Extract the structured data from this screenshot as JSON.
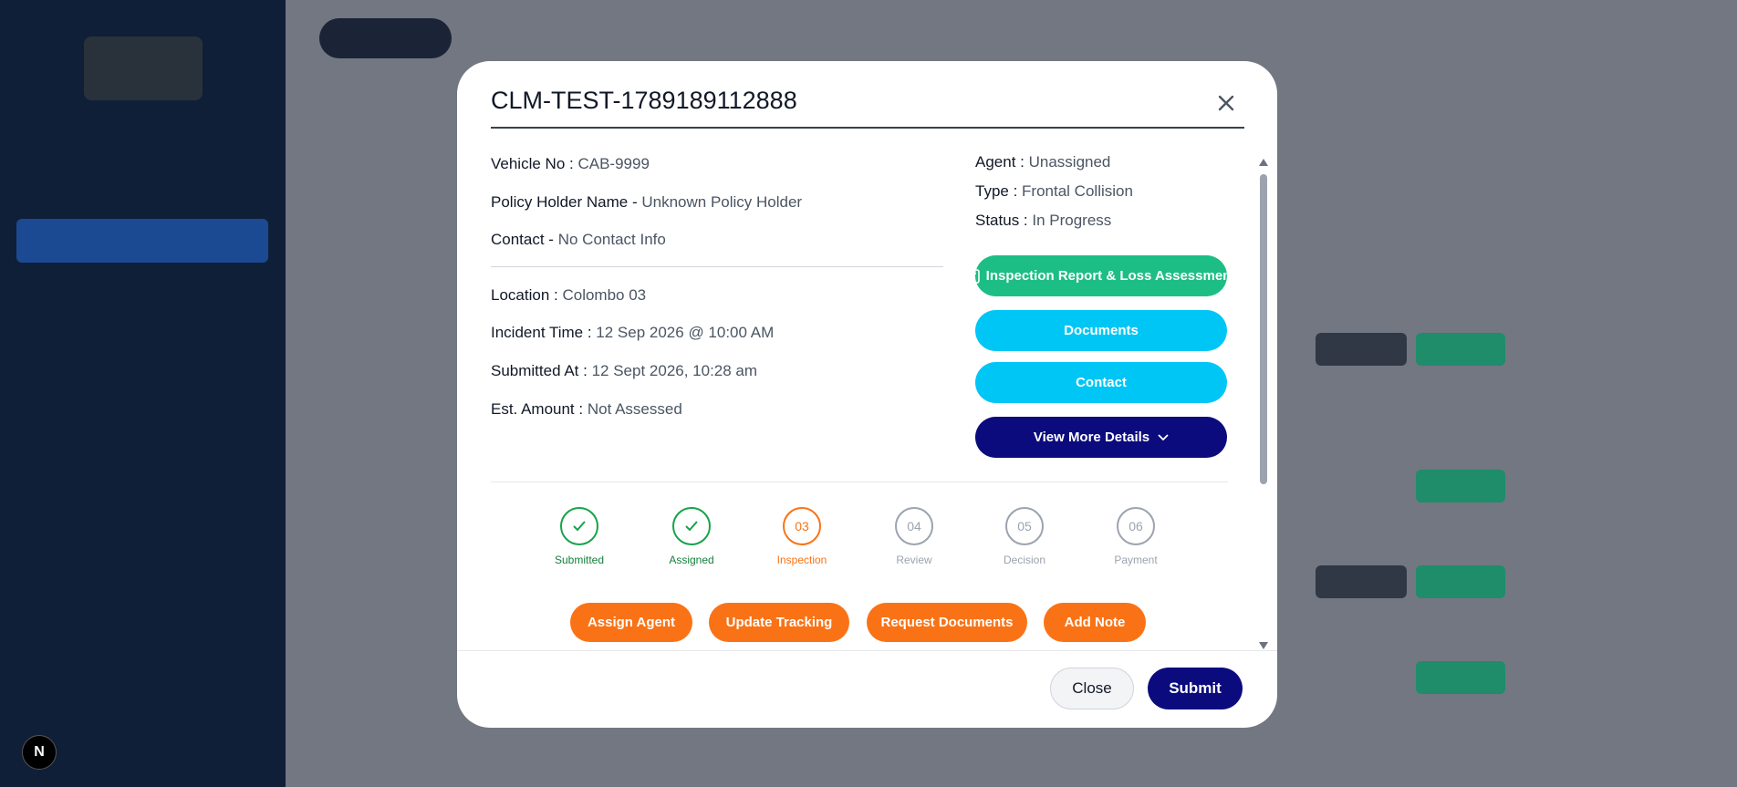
{
  "modal": {
    "title": "CLM-TEST-1789189112888",
    "left_fields": [
      {
        "label": "Vehicle No :",
        "value": "CAB-9999"
      },
      {
        "label": "Policy Holder Name -",
        "value": "Unknown Policy Holder"
      },
      {
        "label": "Contact -",
        "value": "No Contact Info"
      },
      {
        "label": "Location :",
        "value": "Colombo 03"
      },
      {
        "label": "Incident Time :",
        "value": "12 Sep 2026 @ 10:00 AM"
      },
      {
        "label": "Submitted At :",
        "value": "12 Sept 2026, 10:28 am"
      },
      {
        "label": "Est. Amount :",
        "value": "Not Assessed"
      }
    ],
    "right_fields": [
      {
        "label": "Agent :",
        "value": "Unassigned"
      },
      {
        "label": "Type :",
        "value": "Frontal Collision"
      },
      {
        "label": "Status :",
        "value": "In Progress"
      }
    ],
    "side_buttons": [
      "Inspection Report & Loss Assessment",
      "Documents",
      "Contact",
      "View More Details"
    ],
    "steps": [
      {
        "label": "Submitted",
        "state": "done"
      },
      {
        "label": "Assigned",
        "state": "done"
      },
      {
        "marker": "03",
        "label": "Inspection",
        "state": "current"
      },
      {
        "marker": "04",
        "label": "Review",
        "state": "pending"
      },
      {
        "marker": "05",
        "label": "Decision",
        "state": "pending"
      },
      {
        "marker": "06",
        "label": "Payment",
        "state": "pending"
      }
    ],
    "actions": [
      "Assign Agent",
      "Update Tracking",
      "Request Documents",
      "Add Note"
    ],
    "footer": [
      "Close",
      "Submit"
    ]
  },
  "dev_badge": "N"
}
